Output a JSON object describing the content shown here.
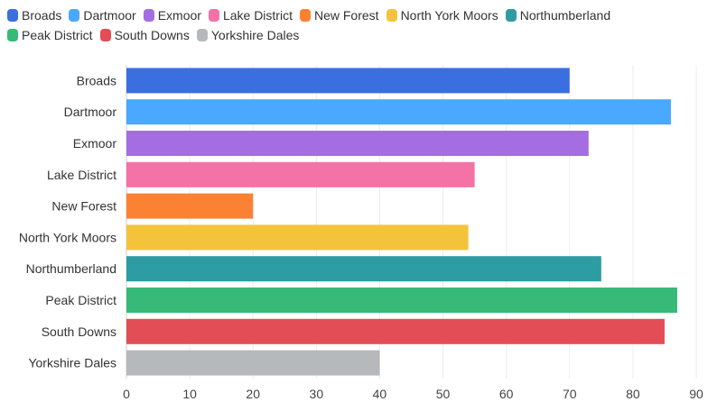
{
  "chart_data": {
    "type": "bar",
    "orientation": "horizontal",
    "title": "",
    "xlabel": "",
    "ylabel": "",
    "xlim": [
      0,
      90
    ],
    "x_ticks": [
      0,
      10,
      20,
      30,
      40,
      50,
      60,
      70,
      80,
      90
    ],
    "grid": true,
    "legend_position": "top-left",
    "categories": [
      "Broads",
      "Dartmoor",
      "Exmoor",
      "Lake District",
      "New Forest",
      "North York Moors",
      "Northumberland",
      "Peak District",
      "South Downs",
      "Yorkshire Dales"
    ],
    "values": [
      70,
      86,
      73,
      55,
      20,
      54,
      75,
      87,
      85,
      40
    ],
    "colors": [
      "#3b6fe0",
      "#4aa8ff",
      "#a56de2",
      "#f472a6",
      "#fb8232",
      "#f3c43b",
      "#2e9ca3",
      "#37b978",
      "#e34d55",
      "#b6b9bc"
    ]
  }
}
